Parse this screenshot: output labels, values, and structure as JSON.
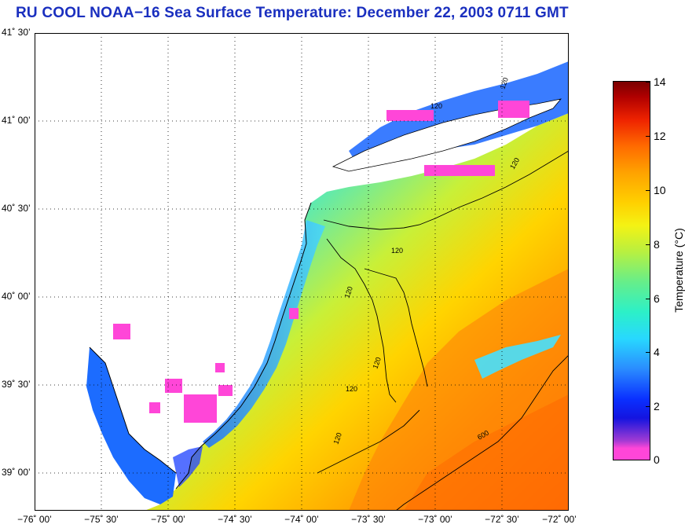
{
  "title": "RU COOL  NOAA−16  Sea Surface Temperature:  December 22, 2003 0711 GMT",
  "map": {
    "lat_labels": [
      "41˚ 30’",
      "41˚ 00’",
      "40˚ 30’",
      "40˚ 00’",
      "39˚ 30’",
      "39˚ 00’"
    ],
    "lon_labels": [
      "−76˚ 00’",
      "−75˚ 30’",
      "−75˚ 00’",
      "−74˚ 30’",
      "−74˚ 00’",
      "−73˚ 30’",
      "−73˚ 00’",
      "−72˚ 30’",
      "−72˚ 00’"
    ],
    "contours": [
      {
        "label": "120"
      },
      {
        "label": "120"
      },
      {
        "label": "120"
      },
      {
        "label": "120"
      },
      {
        "label": "120"
      },
      {
        "label": "120"
      },
      {
        "label": "120"
      },
      {
        "label": "120"
      },
      {
        "label": "600"
      }
    ]
  },
  "colorbar": {
    "label": "Temperature (°C)",
    "ticks": [
      "14",
      "12",
      "10",
      "8",
      "6",
      "4",
      "2",
      "0"
    ],
    "range": [
      0,
      14
    ]
  },
  "colors": {
    "title": "#1a2fbf",
    "cloud": "#ff46d8",
    "cold": "#1414e0",
    "land": "#ffffff"
  }
}
